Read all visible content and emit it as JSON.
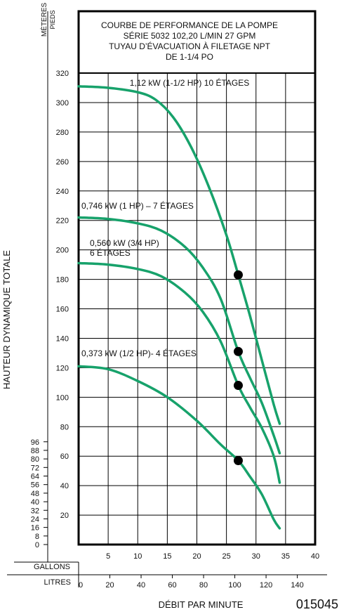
{
  "title_lines": [
    "COURBE DE PERFORMANCE DE LA POMPE",
    "SÉRIE 5032 102,20 L/MIN 27 GPM",
    "TUYAU D’ÉVACUATION À FILETAGE NPT",
    "DE 1-1/4 PO"
  ],
  "y_units": {
    "meters": "MÈTERES",
    "feet": "PIEDS"
  },
  "ylabel": "HAUTEUR DYNAMIQUE TOTALE",
  "xlabel": "DÉBIT PAR MINUTE",
  "x_units": {
    "gallons": "GALLONS",
    "liters": "LITRES"
  },
  "figure_id": "015045",
  "colors": {
    "curve": "#17a26b",
    "grid": "#000000",
    "point": "#000000"
  },
  "chart_data": {
    "type": "line",
    "title": "COURBE DE PERFORMANCE DE LA POMPE",
    "xlabel": "DÉBIT PAR MINUTE",
    "ylabel": "HAUTEUR DYNAMIQUE TOTALE",
    "x_unit": "GPM",
    "y_unit": "PIEDS",
    "xlim": [
      0,
      40
    ],
    "ylim": [
      0,
      320
    ],
    "grid": true,
    "x_ticks_gallons": [
      5,
      10,
      15,
      20,
      25,
      30,
      35,
      40
    ],
    "x_ticks_liters": [
      0,
      20,
      40,
      60,
      80,
      100,
      120,
      140
    ],
    "y_ticks_feet": [
      20,
      40,
      60,
      80,
      100,
      120,
      140,
      160,
      180,
      200,
      220,
      240,
      260,
      280,
      300,
      320
    ],
    "y_ticks_meters": [
      0,
      8,
      16,
      24,
      32,
      40,
      48,
      56,
      64,
      72,
      80,
      88,
      96
    ],
    "series": [
      {
        "name": "1,12 kW (1-1/2 HP) 10 ÉTAGES",
        "x": [
          0,
          5,
          10,
          13,
          16,
          19,
          22,
          25,
          27,
          29,
          31,
          33,
          34
        ],
        "y": [
          311,
          310,
          307,
          302,
          290,
          270,
          243,
          210,
          183,
          155,
          125,
          95,
          82
        ],
        "operating_point": {
          "x": 27,
          "y": 183
        }
      },
      {
        "name": "0,746 kW (1 HP) – 7 ÉTAGES",
        "x": [
          0,
          5,
          10,
          14,
          18,
          21,
          24,
          27,
          29,
          31,
          33,
          34
        ],
        "y": [
          222,
          221,
          218,
          213,
          202,
          188,
          167,
          131,
          113,
          96,
          74,
          62
        ],
        "operating_point": {
          "x": 27,
          "y": 131
        }
      },
      {
        "name": "0,560 kW (3/4 HP) 6 ÉTAGES",
        "x": [
          0,
          5,
          10,
          14,
          18,
          21,
          24,
          27,
          29,
          31,
          33,
          34
        ],
        "y": [
          191,
          190,
          187,
          182,
          171,
          158,
          138,
          108,
          93,
          79,
          60,
          42
        ],
        "operating_point": {
          "x": 27,
          "y": 108
        }
      },
      {
        "name": "0,373 kW (1/2 HP)- 4 ÉTAGES",
        "x": [
          0,
          5,
          10,
          15,
          20,
          24,
          27,
          29,
          31,
          33,
          34
        ],
        "y": [
          121,
          119,
          111,
          100,
          84,
          68,
          57,
          46,
          34,
          17,
          11
        ],
        "operating_point": {
          "x": 27,
          "y": 57
        }
      }
    ]
  }
}
